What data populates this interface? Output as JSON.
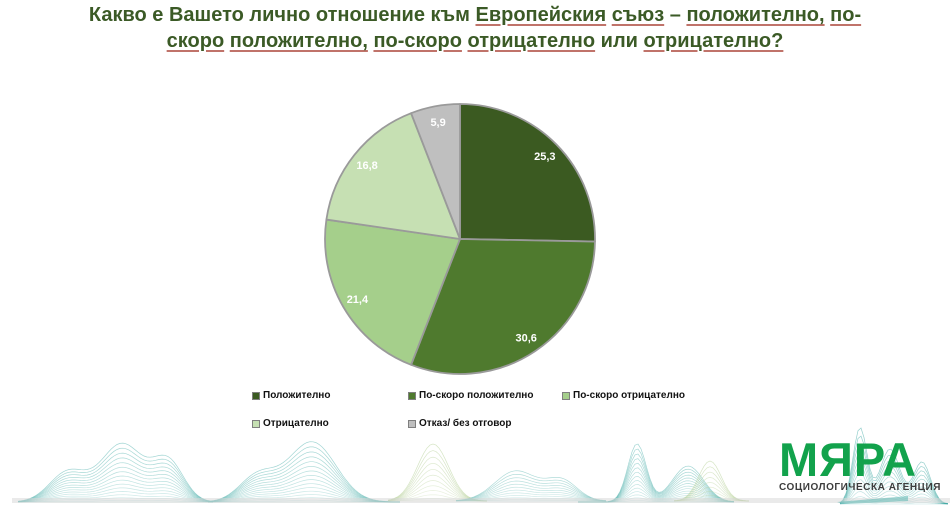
{
  "title": {
    "lines": [
      [
        {
          "t": "Какво",
          "u": false
        },
        {
          "t": "е",
          "u": false
        },
        {
          "t": "Вашето",
          "u": false
        },
        {
          "t": "лично",
          "u": false
        },
        {
          "t": "отношение",
          "u": false
        },
        {
          "t": "към",
          "u": false
        },
        {
          "t": "Европейския",
          "u": true
        },
        {
          "t": "съюз",
          "u": true
        },
        {
          "t": "–",
          "u": false
        },
        {
          "t": "положително,",
          "u": true
        },
        {
          "t": "по-",
          "u": true
        }
      ],
      [
        {
          "t": "скоро",
          "u": true
        },
        {
          "t": "положително,",
          "u": true
        },
        {
          "t": "по-скоро",
          "u": true
        },
        {
          "t": "отрицателно",
          "u": true
        },
        {
          "t": "или",
          "u": false
        },
        {
          "t": "отрицателно?",
          "u": true
        }
      ]
    ]
  },
  "chart_data": {
    "type": "pie",
    "title": "Какво е Вашето лично отношение към Европейския съюз – положително, по-скоро положително, по-скоро отрицателно или отрицателно?",
    "direction": "clockwise",
    "start_angle_deg": 0,
    "legend_position": "bottom",
    "label_color": "#ffffff",
    "slice_border_color": "#9a9a9a",
    "center": [
      460,
      239
    ],
    "radius": 135,
    "slices": [
      {
        "label": "Положително",
        "value": 25.3,
        "display": "25,3",
        "color": "#3b5a21"
      },
      {
        "label": "По-скоро положително",
        "value": 30.6,
        "display": "30,6",
        "color": "#4f7a2e"
      },
      {
        "label": "По-скоро отрицателно",
        "value": 21.4,
        "display": "21,4",
        "color": "#a5cf8b"
      },
      {
        "label": "Отрицателно",
        "value": 16.8,
        "display": "16,8",
        "color": "#c6e0b3"
      },
      {
        "label": "Отказ/ без отговор",
        "value": 5.9,
        "display": "5,9",
        "color": "#bfbfbf"
      }
    ]
  },
  "logo": {
    "name": "МЯРА",
    "subtitle": "СОЦИОЛОГИЧЕСКА АГЕНЦИЯ",
    "color": "#12a24c"
  }
}
